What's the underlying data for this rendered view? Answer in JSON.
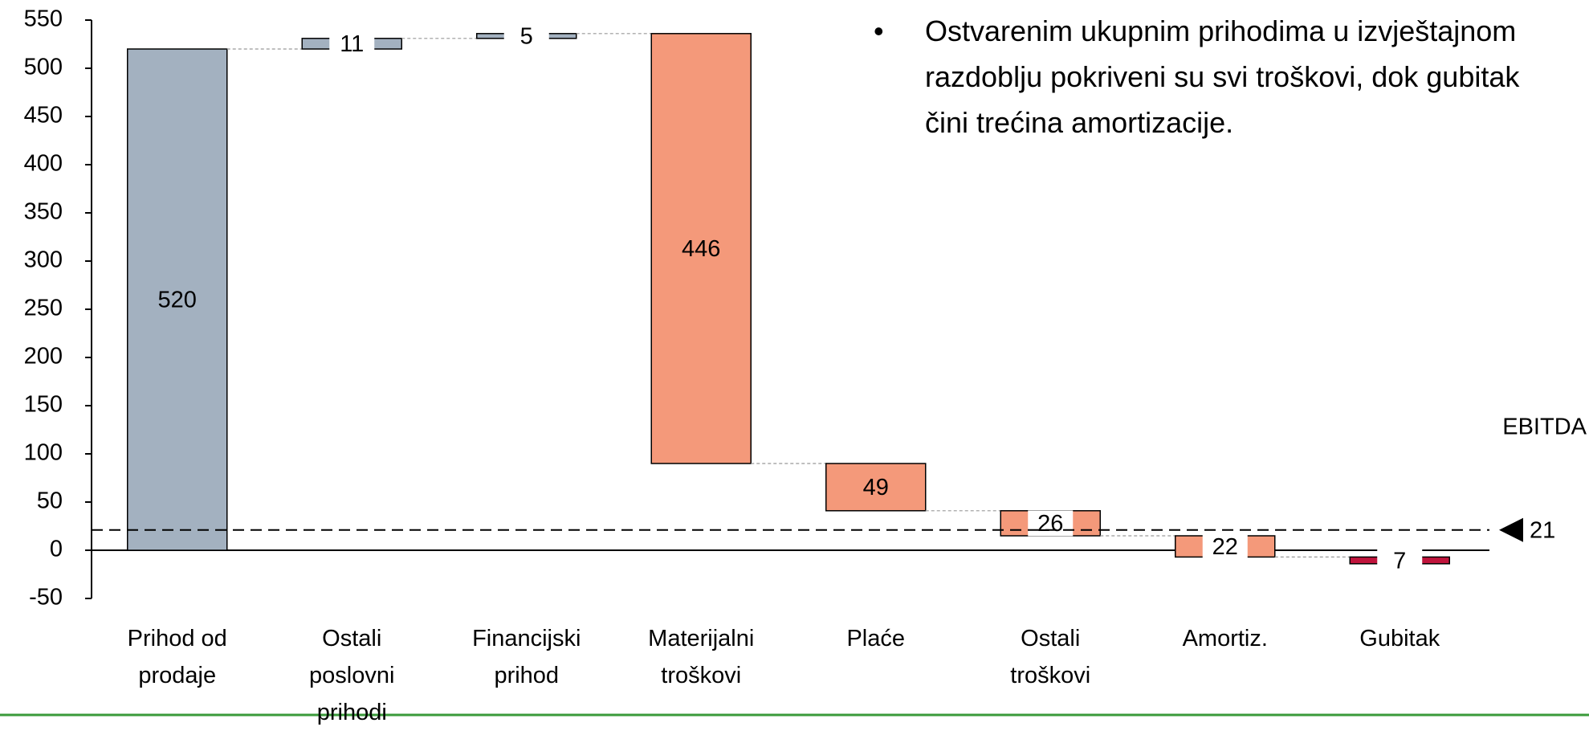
{
  "chart_data": {
    "type": "waterfall",
    "categories": [
      "Prihod od prodaje",
      "Ostali poslovni prihodi",
      "Financijski prihod",
      "Materijalni troškovi",
      "Plaće",
      "Ostali troškovi",
      "Amortiz.",
      "Gubitak"
    ],
    "values": [
      520,
      11,
      5,
      -446,
      -49,
      -26,
      -22,
      -7
    ],
    "value_labels": [
      "520",
      "11",
      "5",
      "446",
      "49",
      "26",
      "22",
      "7"
    ],
    "colors": [
      "#a3b1c0",
      "#a3b1c0",
      "#a3b1c0",
      "#f4997a",
      "#f4997a",
      "#f4997a",
      "#f4997a",
      "#c0143c"
    ],
    "ylim": [
      -50,
      550
    ],
    "yticks": [
      -50,
      0,
      50,
      100,
      150,
      200,
      250,
      300,
      350,
      400,
      450,
      500,
      550
    ],
    "reference_line": {
      "label": "EBITDA",
      "value": 21
    },
    "annotation": "Ostvarenim ukupnim prihodima u izvještajnom razdoblju pokriveni su svi troškovi, dok gubitak čini trećina amortizacije."
  }
}
